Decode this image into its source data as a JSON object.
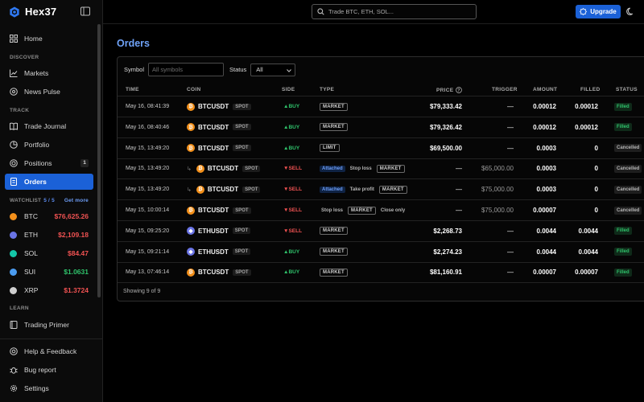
{
  "app": {
    "name": "Hex37"
  },
  "sidebar": {
    "nav_top": [
      {
        "label": "Home",
        "icon": "grid-icon"
      }
    ],
    "sections": [
      {
        "title": "DISCOVER",
        "items": [
          {
            "label": "Markets",
            "icon": "chart-icon"
          },
          {
            "label": "News Pulse",
            "icon": "pulse-icon"
          }
        ]
      },
      {
        "title": "TRACK",
        "items": [
          {
            "label": "Trade Journal",
            "icon": "book-icon"
          },
          {
            "label": "Portfolio",
            "icon": "pie-icon"
          },
          {
            "label": "Positions",
            "icon": "target-icon",
            "count": "1"
          },
          {
            "label": "Orders",
            "icon": "receipt-icon",
            "active": true
          }
        ]
      }
    ],
    "watchlist": {
      "title": "WATCHLIST",
      "count": "5 / 5",
      "more_label": "Get more",
      "items": [
        {
          "symbol": "BTC",
          "price": "$76,625.26",
          "trend": "down",
          "color": "#f3901b"
        },
        {
          "symbol": "ETH",
          "price": "$2,109.18",
          "trend": "down",
          "color": "#6a74e6"
        },
        {
          "symbol": "SOL",
          "price": "$84.47",
          "trend": "down",
          "color": "#14c7a8"
        },
        {
          "symbol": "SUI",
          "price": "$1.0631",
          "trend": "up",
          "color": "#4b9cf0"
        },
        {
          "symbol": "XRP",
          "price": "$1.3724",
          "trend": "down",
          "color": "#cfcfcf"
        }
      ]
    },
    "learn": {
      "title": "LEARN",
      "items": [
        {
          "label": "Trading Primer",
          "icon": "book-open-icon"
        }
      ]
    },
    "bottom": [
      {
        "label": "Help & Feedback",
        "icon": "help-icon"
      },
      {
        "label": "Bug report",
        "icon": "bug-icon"
      },
      {
        "label": "Settings",
        "icon": "gear-icon"
      }
    ]
  },
  "topbar": {
    "search_placeholder": "Trade BTC, ETH, SOL...",
    "upgrade_label": "Upgrade"
  },
  "page": {
    "title": "Orders"
  },
  "filters": {
    "symbol_label": "Symbol",
    "symbol_placeholder": "All symbols",
    "status_label": "Status",
    "status_value": "All"
  },
  "table": {
    "headers": {
      "time": "TIME",
      "coin": "COIN",
      "side": "SIDE",
      "type": "TYPE",
      "price": "PRICE",
      "trigger": "TRIGGER",
      "amount": "AMOUNT",
      "filled": "FILLED",
      "status": "STATUS"
    },
    "rows": [
      {
        "time": "May 16, 08:41:39",
        "symbol": "BTCUSDT",
        "coin": "btc",
        "market": "SPOT",
        "side": "BUY",
        "type_tags": [
          "MARKET"
        ],
        "price": "$79,333.42",
        "trigger": "—",
        "amount": "0.00012",
        "filled": "0.00012",
        "status": "Filled"
      },
      {
        "time": "May 16, 08:40:46",
        "symbol": "BTCUSDT",
        "coin": "btc",
        "market": "SPOT",
        "side": "BUY",
        "type_tags": [
          "MARKET"
        ],
        "price": "$79,326.42",
        "trigger": "—",
        "amount": "0.00012",
        "filled": "0.00012",
        "status": "Filled"
      },
      {
        "time": "May 15, 13:49:20",
        "symbol": "BTCUSDT",
        "coin": "btc",
        "market": "SPOT",
        "side": "BUY",
        "type_tags": [
          "LIMIT"
        ],
        "price": "$69,500.00",
        "trigger": "—",
        "amount": "0.0003",
        "filled": "0",
        "status": "Cancelled"
      },
      {
        "time": "May 15, 13:49:20",
        "symbol": "BTCUSDT",
        "coin": "btc",
        "market": "SPOT",
        "side": "SELL",
        "child": true,
        "attached": "Attached",
        "type_plain": "Stop loss",
        "type_tags": [
          "MARKET"
        ],
        "price": "—",
        "trigger": "$65,000.00",
        "amount": "0.0003",
        "filled": "0",
        "status": "Cancelled"
      },
      {
        "time": "May 15, 13:49:20",
        "symbol": "BTCUSDT",
        "coin": "btc",
        "market": "SPOT",
        "side": "SELL",
        "child": true,
        "attached": "Attached",
        "type_plain": "Take profit",
        "type_tags": [
          "MARKET"
        ],
        "price": "—",
        "trigger": "$75,000.00",
        "amount": "0.0003",
        "filled": "0",
        "status": "Cancelled"
      },
      {
        "time": "May 15, 10:00:14",
        "symbol": "BTCUSDT",
        "coin": "btc",
        "market": "SPOT",
        "side": "SELL",
        "type_plain": "Stop loss",
        "type_tags": [
          "MARKET"
        ],
        "type_plain_after": "Close only",
        "price": "—",
        "trigger": "$75,000.00",
        "amount": "0.00007",
        "filled": "0",
        "status": "Cancelled"
      },
      {
        "time": "May 15, 09:25:20",
        "symbol": "ETHUSDT",
        "coin": "eth",
        "market": "SPOT",
        "side": "SELL",
        "type_tags": [
          "MARKET"
        ],
        "price": "$2,268.73",
        "trigger": "—",
        "amount": "0.0044",
        "filled": "0.0044",
        "status": "Filled"
      },
      {
        "time": "May 15, 09:21:14",
        "symbol": "ETHUSDT",
        "coin": "eth",
        "market": "SPOT",
        "side": "BUY",
        "type_tags": [
          "MARKET"
        ],
        "price": "$2,274.23",
        "trigger": "—",
        "amount": "0.0044",
        "filled": "0.0044",
        "status": "Filled"
      },
      {
        "time": "May 13, 07:46:14",
        "symbol": "BTCUSDT",
        "coin": "btc",
        "market": "SPOT",
        "side": "BUY",
        "type_tags": [
          "MARKET"
        ],
        "price": "$81,160.91",
        "trigger": "—",
        "amount": "0.00007",
        "filled": "0.00007",
        "status": "Filled"
      }
    ],
    "footer": "Showing 9 of 9"
  }
}
